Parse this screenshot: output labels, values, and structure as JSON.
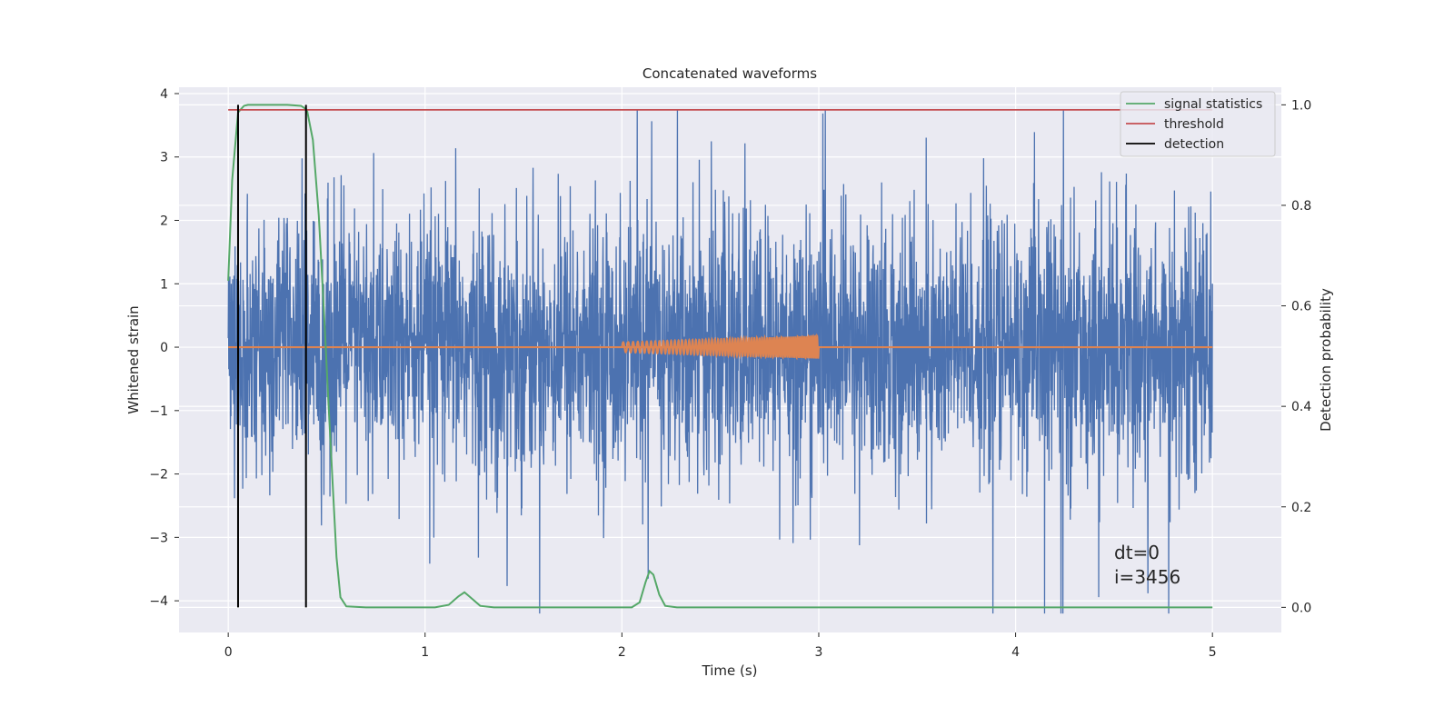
{
  "chart_data": {
    "type": "line",
    "title": "Concatenated waveforms",
    "xlabel": "Time (s)",
    "ylabel": "Whitened strain",
    "y2label": "Detection probability",
    "xlim": [
      -0.25,
      5.35
    ],
    "ylim": [
      -4.5,
      4.1
    ],
    "y2lim": [
      -0.05,
      1.035
    ],
    "xticks": [
      0,
      1,
      2,
      3,
      4,
      5
    ],
    "yticks": [
      -4,
      -3,
      -2,
      -1,
      0,
      1,
      2,
      3,
      4
    ],
    "y2ticks": [
      0.0,
      0.2,
      0.4,
      0.6,
      0.8,
      1.0
    ],
    "grid": true,
    "legend_position": "top-right",
    "annotation": {
      "text_line1": "dt=0",
      "text_line2": "i=3456",
      "x": 4.5,
      "y": -3.6
    },
    "colors": {
      "background": "#eaeaf2",
      "grid": "#ffffff",
      "strain": "#4c72b0",
      "template": "#dd8452",
      "signal_statistics": "#55a868",
      "threshold": "#c44e52",
      "detection": "#000000"
    },
    "series": [
      {
        "name": "",
        "kind": "strain",
        "axis": "left",
        "x_range": [
          0,
          5
        ],
        "amplitude_range": [
          -4.2,
          3.75
        ]
      },
      {
        "name": "",
        "kind": "template",
        "axis": "left",
        "flat": {
          "x_range": [
            0,
            5
          ],
          "y": 0
        },
        "chirp": {
          "x_range": [
            2.0,
            3.0
          ],
          "amplitude_start": 0.08,
          "amplitude_end": 0.18
        }
      },
      {
        "name": "signal statistics",
        "axis": "right",
        "points": [
          [
            0.0,
            0.65
          ],
          [
            0.02,
            0.85
          ],
          [
            0.05,
            0.985
          ],
          [
            0.08,
            0.998
          ],
          [
            0.1,
            1.0
          ],
          [
            0.3,
            1.0
          ],
          [
            0.37,
            0.998
          ],
          [
            0.4,
            0.99
          ],
          [
            0.43,
            0.93
          ],
          [
            0.46,
            0.78
          ],
          [
            0.49,
            0.56
          ],
          [
            0.51,
            0.4
          ],
          [
            0.53,
            0.25
          ],
          [
            0.55,
            0.1
          ],
          [
            0.57,
            0.02
          ],
          [
            0.6,
            0.002
          ],
          [
            0.7,
            0.0
          ],
          [
            1.05,
            0.0
          ],
          [
            1.12,
            0.005
          ],
          [
            1.17,
            0.022
          ],
          [
            1.2,
            0.03
          ],
          [
            1.23,
            0.02
          ],
          [
            1.28,
            0.003
          ],
          [
            1.35,
            0.0
          ],
          [
            2.05,
            0.0
          ],
          [
            2.09,
            0.01
          ],
          [
            2.12,
            0.05
          ],
          [
            2.14,
            0.072
          ],
          [
            2.16,
            0.065
          ],
          [
            2.19,
            0.025
          ],
          [
            2.22,
            0.003
          ],
          [
            2.28,
            0.0
          ],
          [
            5.0,
            0.0
          ]
        ]
      },
      {
        "name": "threshold",
        "axis": "right",
        "x_range": [
          0,
          5
        ],
        "y": 0.99
      },
      {
        "name": "detection",
        "axis": "right",
        "x": [
          0.05,
          0.395
        ],
        "y_range": [
          0.0,
          1.0
        ]
      }
    ]
  }
}
